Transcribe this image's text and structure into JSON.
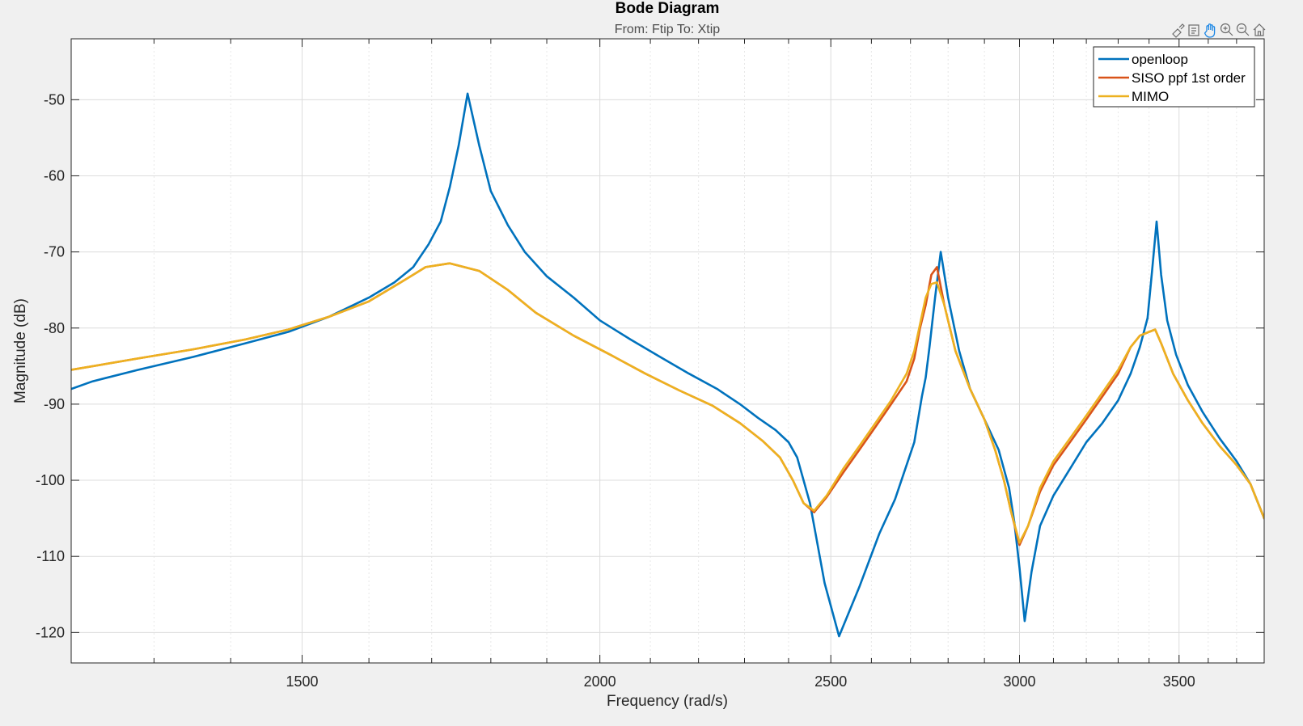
{
  "figure": {
    "title": "Bode Diagram",
    "subtitle": "From: Ftip  To: Xtip"
  },
  "toolbar": {
    "icons": [
      "brush-icon",
      "data-tip-icon",
      "pan-icon",
      "zoom-in-icon",
      "zoom-out-icon",
      "home-icon"
    ]
  },
  "chart_data": {
    "type": "line",
    "title": "Bode Diagram",
    "subtitle": "From: Ftip  To: Xtip",
    "xlabel": "Frequency  (rad/s)",
    "ylabel": "Magnitude (dB)",
    "xscale": "log",
    "xlim": [
      1200,
      3800
    ],
    "ylim": [
      -124,
      -42
    ],
    "xticks": [
      1500,
      2000,
      2500,
      3000,
      3500
    ],
    "xtick_labels": [
      "1500",
      "2000",
      "2500",
      "3000",
      "3500"
    ],
    "yticks": [
      -120,
      -110,
      -100,
      -90,
      -80,
      -70,
      -60,
      -50
    ],
    "ytick_labels": [
      "-120",
      "-110",
      "-100",
      "-90",
      "-80",
      "-70",
      "-60",
      "-50"
    ],
    "grid": true,
    "legend_position": "top-right",
    "series": [
      {
        "name": "openloop",
        "color": "#0072bd",
        "x": [
          1200,
          1225,
          1280,
          1350,
          1420,
          1480,
          1540,
          1600,
          1640,
          1670,
          1695,
          1715,
          1730,
          1745,
          1760,
          1780,
          1800,
          1830,
          1860,
          1900,
          1950,
          2000,
          2060,
          2120,
          2180,
          2240,
          2290,
          2330,
          2370,
          2400,
          2420,
          2435,
          2450,
          2465,
          2485,
          2520,
          2570,
          2620,
          2660,
          2690,
          2710,
          2720,
          2730,
          2740,
          2750,
          2765,
          2780,
          2800,
          2830,
          2860,
          2900,
          2940,
          2970,
          2985,
          3000,
          3015,
          3035,
          3060,
          3100,
          3150,
          3200,
          3250,
          3300,
          3340,
          3370,
          3395,
          3410,
          3425,
          3440,
          3460,
          3490,
          3530,
          3580,
          3640,
          3700,
          3750,
          3800
        ],
        "y": [
          -88,
          -87,
          -85.5,
          -83.8,
          -82,
          -80.5,
          -78.5,
          -76,
          -74,
          -72,
          -69,
          -66,
          -61.5,
          -56,
          -49.2,
          -56,
          -62,
          -66.5,
          -70,
          -73.2,
          -76,
          -79,
          -81.5,
          -83.8,
          -86,
          -88,
          -90,
          -91.8,
          -93.4,
          -95,
          -97,
          -100,
          -103,
          -107.5,
          -113.5,
          -120.5,
          -114,
          -107,
          -102.5,
          -98,
          -95,
          -92,
          -89,
          -86.5,
          -82.5,
          -76,
          -70,
          -76,
          -83,
          -88,
          -92,
          -96,
          -101,
          -105.5,
          -111.5,
          -118.5,
          -112,
          -106,
          -102,
          -98.5,
          -95,
          -92.5,
          -89.5,
          -86,
          -82.5,
          -78.7,
          -72.5,
          -66,
          -73,
          -79,
          -83.5,
          -87.5,
          -91,
          -94.5,
          -97.5,
          -100.5,
          -105
        ]
      },
      {
        "name": "SISO ppf 1st order",
        "color": "#d95319",
        "x": [
          1200,
          1280,
          1350,
          1420,
          1480,
          1540,
          1600,
          1650,
          1690,
          1730,
          1780,
          1830,
          1880,
          1950,
          2020,
          2090,
          2160,
          2230,
          2290,
          2340,
          2380,
          2410,
          2435,
          2460,
          2490,
          2530,
          2570,
          2610,
          2650,
          2690,
          2710,
          2725,
          2740,
          2755,
          2770,
          2790,
          2820,
          2860,
          2900,
          2930,
          2955,
          2975,
          3000,
          3025,
          3060,
          3100,
          3150,
          3200,
          3250,
          3300,
          3340,
          3370,
          3400,
          3420,
          3440,
          3480,
          3530,
          3580,
          3640,
          3700,
          3750,
          3800
        ],
        "y": [
          -85.5,
          -84,
          -82.8,
          -81.5,
          -80.2,
          -78.5,
          -76.5,
          -74,
          -72,
          -71.5,
          -72.5,
          -75,
          -78,
          -81,
          -83.5,
          -86,
          -88.2,
          -90.2,
          -92.5,
          -94.8,
          -97,
          -100,
          -103,
          -104.2,
          -102.2,
          -99,
          -96,
          -93,
          -90,
          -87,
          -84,
          -80,
          -77,
          -73,
          -72,
          -77,
          -83,
          -88,
          -92,
          -96,
          -100,
          -104,
          -108.5,
          -106,
          -101.5,
          -98,
          -95,
          -92,
          -89,
          -86,
          -82.5,
          -81,
          -80.5,
          -80.2,
          -82,
          -86,
          -89.5,
          -92.5,
          -95.5,
          -98,
          -100.5,
          -105
        ]
      },
      {
        "name": "MIMO",
        "color": "#edb120",
        "x": [
          1200,
          1280,
          1350,
          1420,
          1480,
          1540,
          1600,
          1650,
          1690,
          1730,
          1780,
          1830,
          1880,
          1950,
          2020,
          2090,
          2160,
          2230,
          2290,
          2340,
          2380,
          2410,
          2435,
          2460,
          2490,
          2530,
          2570,
          2610,
          2650,
          2690,
          2710,
          2725,
          2740,
          2755,
          2770,
          2790,
          2820,
          2860,
          2900,
          2930,
          2955,
          2975,
          3000,
          3025,
          3060,
          3100,
          3150,
          3200,
          3250,
          3300,
          3340,
          3370,
          3400,
          3420,
          3440,
          3480,
          3530,
          3580,
          3640,
          3700,
          3750,
          3800
        ],
        "y": [
          -85.5,
          -84,
          -82.8,
          -81.5,
          -80.2,
          -78.5,
          -76.5,
          -74,
          -72,
          -71.5,
          -72.5,
          -75,
          -78,
          -81,
          -83.5,
          -86,
          -88.2,
          -90.2,
          -92.5,
          -94.8,
          -97,
          -100,
          -103,
          -104,
          -102,
          -98.5,
          -95.5,
          -92.5,
          -89.5,
          -86,
          -83,
          -79.5,
          -76,
          -74.2,
          -74,
          -77,
          -83,
          -88,
          -92,
          -96,
          -100,
          -104,
          -108.2,
          -106,
          -101,
          -97.5,
          -94.5,
          -91.5,
          -88.5,
          -85.5,
          -82.5,
          -81,
          -80.5,
          -80.2,
          -82,
          -86,
          -89.5,
          -92.5,
          -95.5,
          -98,
          -100.5,
          -105
        ]
      }
    ]
  }
}
